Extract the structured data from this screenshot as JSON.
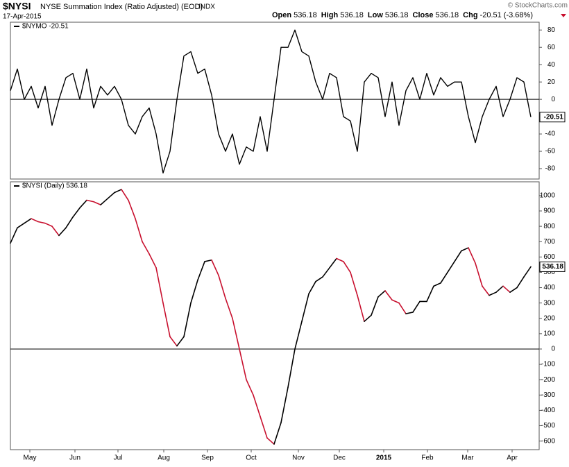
{
  "header": {
    "symbol": "$NYSI",
    "name": "NYSE Summation Index (Ratio Adjusted) (EOD)",
    "exchange": "INDX",
    "date": "17-Apr-2015",
    "quote": [
      {
        "label": "Open",
        "value": "536.18"
      },
      {
        "label": "High",
        "value": "536.18"
      },
      {
        "label": "Low",
        "value": "536.18"
      },
      {
        "label": "Close",
        "value": "536.18"
      },
      {
        "label": "Chg",
        "value": "-20.51 (-3.68%)"
      }
    ],
    "copyright": "© StockCharts.com"
  },
  "chart_data": [
    {
      "type": "line",
      "xlim": [
        0,
        75
      ],
      "ylim": [
        -92,
        89
      ],
      "yticks": [
        -80,
        -60,
        -40,
        -20,
        0,
        20,
        40,
        60,
        80
      ],
      "zero_line": true,
      "last_label": "-20.51",
      "series": [
        {
          "name": "$NYMO -20.51",
          "color": "#000000",
          "values": [
            10,
            35,
            0,
            15,
            -10,
            15,
            -30,
            0,
            25,
            30,
            0,
            35,
            -10,
            15,
            5,
            15,
            0,
            -30,
            -40,
            -20,
            -10,
            -40,
            -85,
            -60,
            0,
            50,
            55,
            30,
            35,
            5,
            -40,
            -60,
            -40,
            -75,
            -55,
            -60,
            -20,
            -60,
            0,
            60,
            60,
            80,
            55,
            50,
            20,
            0,
            30,
            25,
            -20,
            -25,
            -60,
            20,
            30,
            25,
            -20,
            20,
            -30,
            10,
            25,
            0,
            30,
            5,
            25,
            15,
            20,
            20,
            -20,
            -50,
            -20,
            0,
            15,
            -20,
            0,
            25,
            20,
            -20.51
          ]
        }
      ]
    },
    {
      "type": "line",
      "xlim": [
        0,
        75
      ],
      "ylim": [
        -656,
        1090
      ],
      "yticks": [
        -600,
        -500,
        -400,
        -300,
        -200,
        -100,
        0,
        100,
        200,
        300,
        400,
        500,
        600,
        700,
        800,
        900,
        1000
      ],
      "zero_line": true,
      "last_label": "536.18",
      "xticks": [
        {
          "value": 2.8,
          "label": "May"
        },
        {
          "value": 9.3,
          "label": "Jun"
        },
        {
          "value": 15.5,
          "label": "Jul"
        },
        {
          "value": 22.1,
          "label": "Aug"
        },
        {
          "value": 28.4,
          "label": "Sep"
        },
        {
          "value": 34.7,
          "label": "Oct"
        },
        {
          "value": 41.5,
          "label": "Nov"
        },
        {
          "value": 47.4,
          "label": "Dec"
        },
        {
          "value": 53.8,
          "label": "2015"
        },
        {
          "value": 60.1,
          "label": "Feb"
        },
        {
          "value": 65.9,
          "label": "Mar"
        },
        {
          "value": 72.3,
          "label": "Apr"
        }
      ],
      "up_color": "#000000",
      "down_color": "#c8102e",
      "series": [
        {
          "name": "$NYSI (Daily) 536.18",
          "color": "#000000",
          "values": [
            690,
            790,
            820,
            850,
            830,
            820,
            800,
            740,
            790,
            860,
            920,
            970,
            960,
            940,
            980,
            1020,
            1040,
            970,
            850,
            700,
            620,
            530,
            300,
            80,
            20,
            80,
            300,
            450,
            570,
            580,
            480,
            330,
            200,
            0,
            -200,
            -300,
            -440,
            -580,
            -620,
            -480,
            -250,
            0,
            180,
            360,
            440,
            470,
            530,
            590,
            570,
            500,
            350,
            180,
            220,
            340,
            380,
            320,
            300,
            230,
            240,
            310,
            310,
            410,
            430,
            500,
            570,
            640,
            660,
            560,
            410,
            350,
            370,
            410,
            370,
            400,
            470,
            536.18
          ]
        }
      ]
    }
  ]
}
